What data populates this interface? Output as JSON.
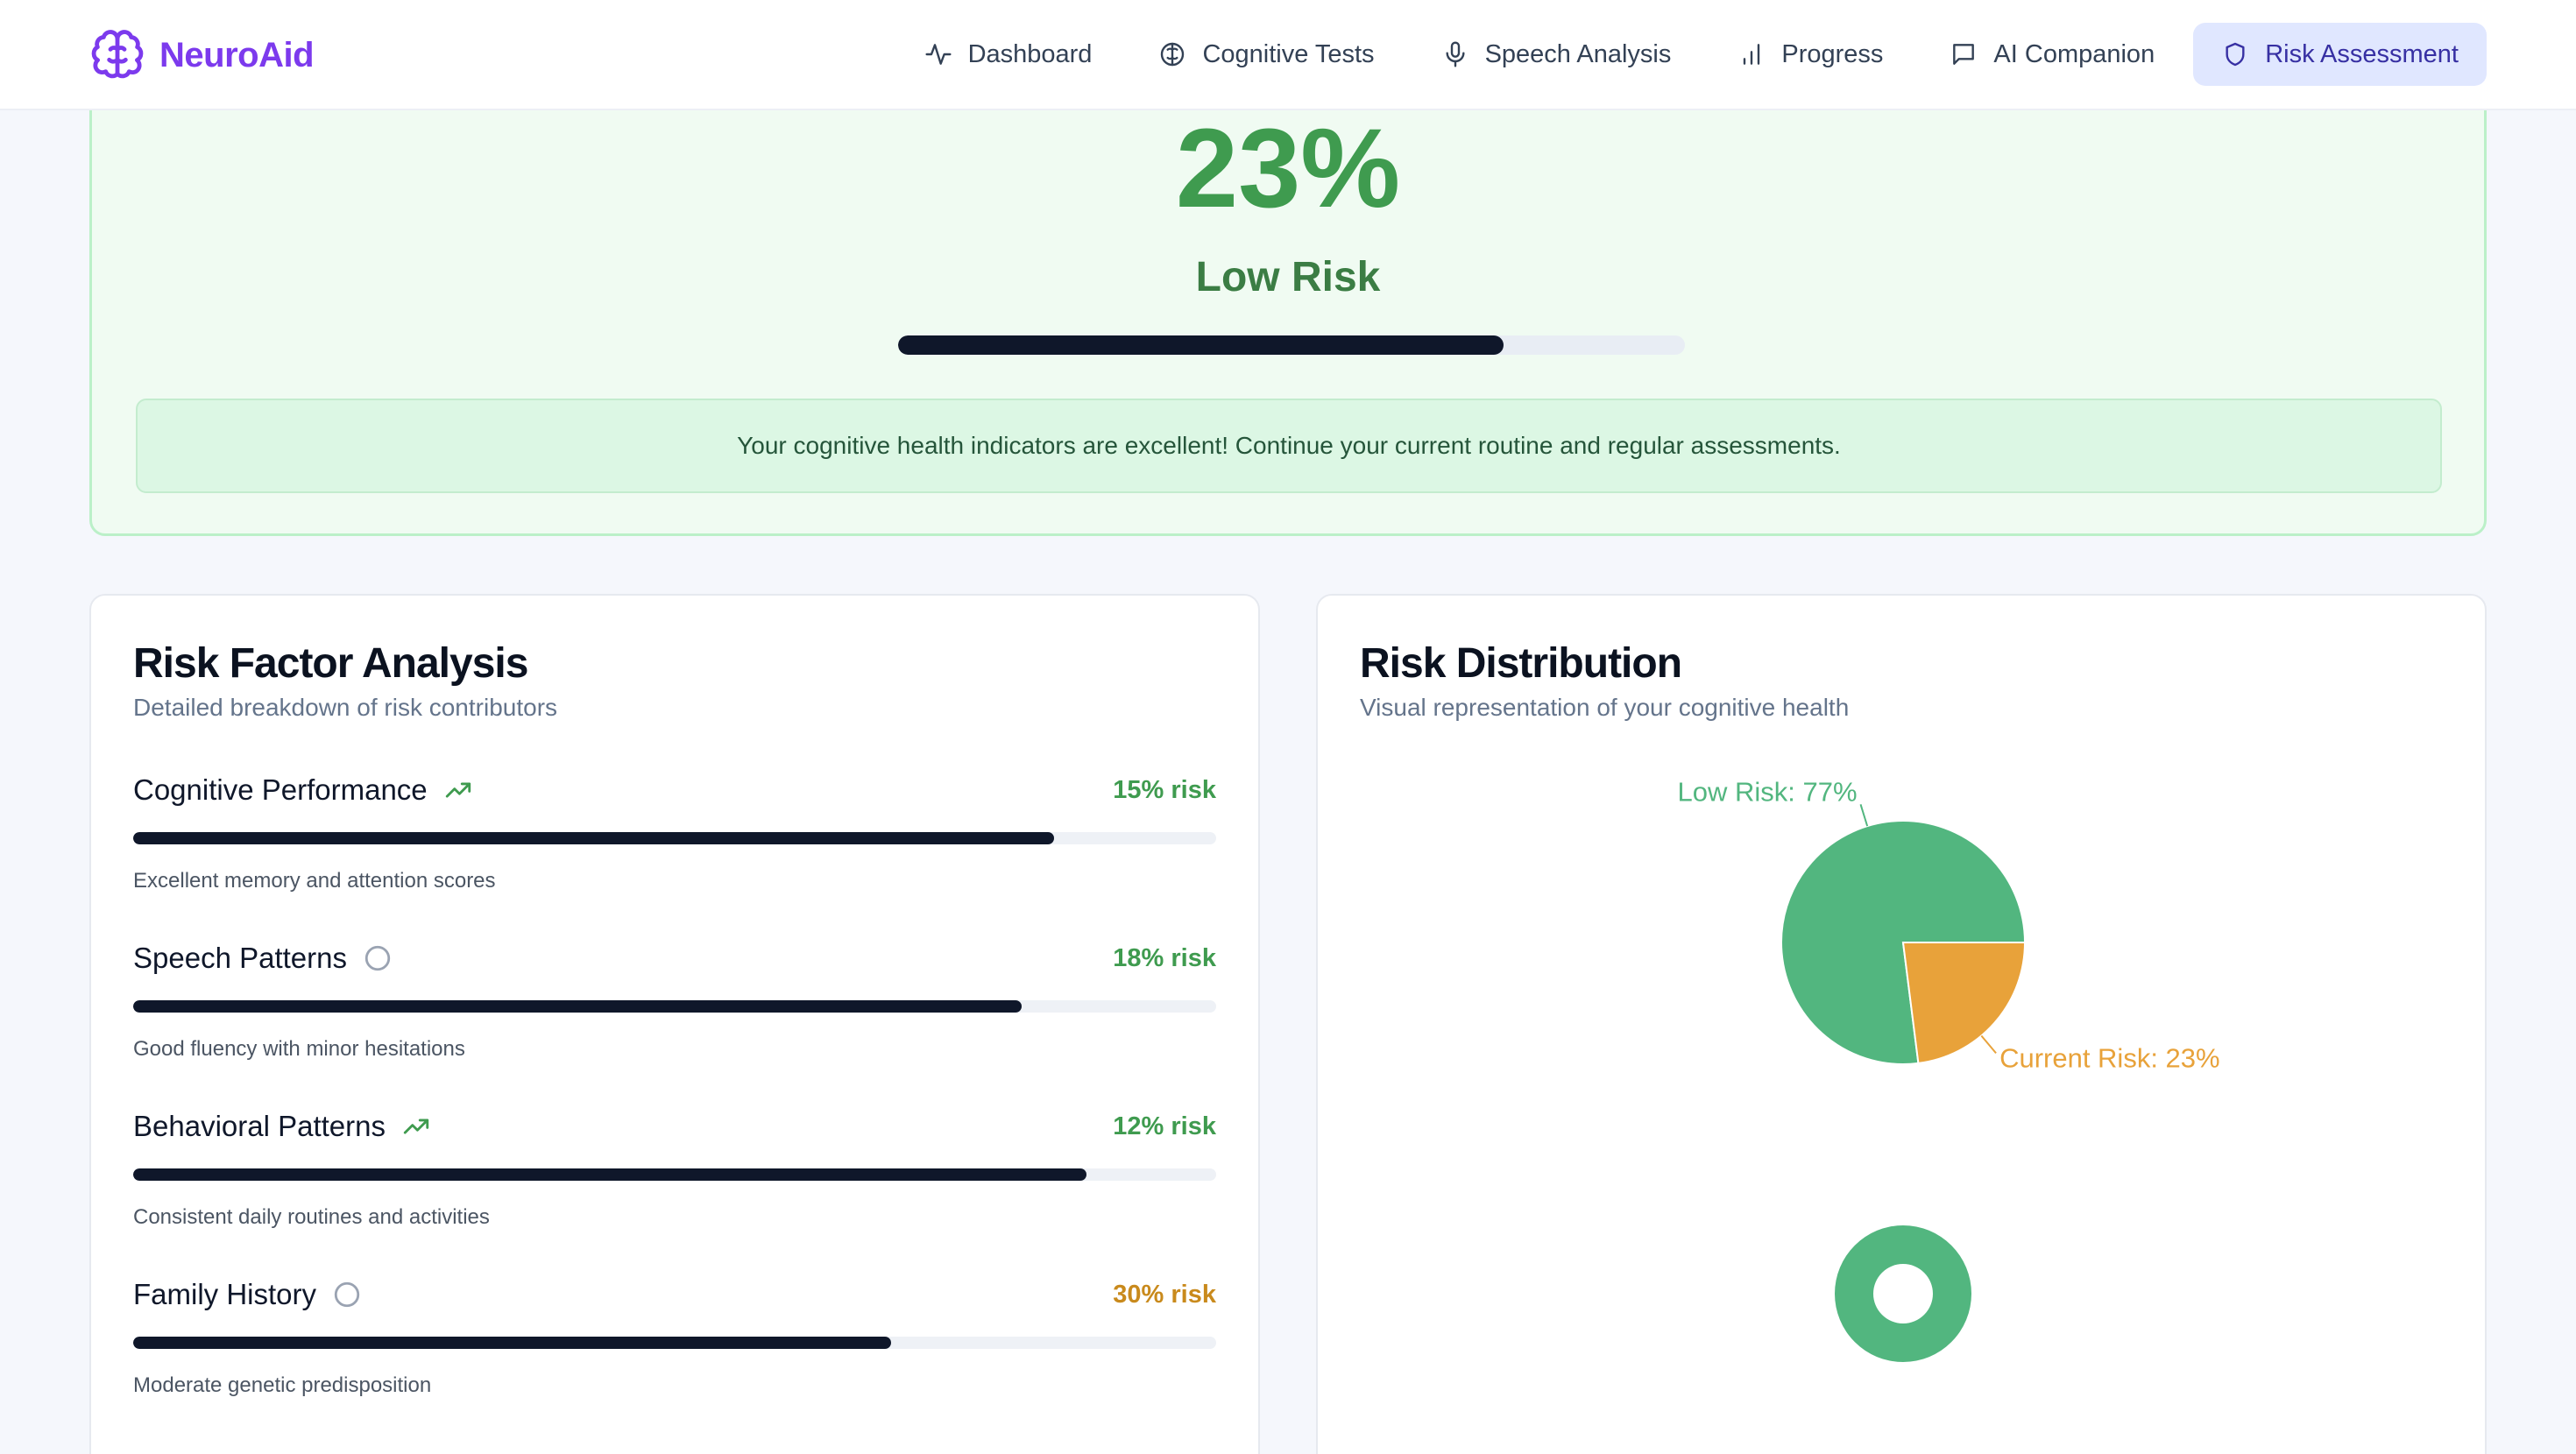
{
  "app": {
    "name": "NeuroAid",
    "logo_icon": "brain-icon"
  },
  "nav": [
    {
      "label": "Dashboard",
      "icon": "activity-icon",
      "active": false
    },
    {
      "label": "Cognitive Tests",
      "icon": "brain-icon",
      "active": false
    },
    {
      "label": "Speech Analysis",
      "icon": "microphone-icon",
      "active": false
    },
    {
      "label": "Progress",
      "icon": "bar-chart-icon",
      "active": false
    },
    {
      "label": "AI Companion",
      "icon": "message-icon",
      "active": false
    },
    {
      "label": "Risk Assessment",
      "icon": "shield-icon",
      "active": true
    }
  ],
  "summary": {
    "score": "23%",
    "level": "Low Risk",
    "progress_fraction": 0.77,
    "message": "Your cognitive health indicators are excellent! Continue your current routine and regular assessments."
  },
  "risk_factors": {
    "title": "Risk Factor Analysis",
    "subtitle": "Detailed breakdown of risk contributors",
    "items": [
      {
        "name": "Cognitive Performance",
        "risk_label": "15% risk",
        "risk": 15,
        "bar_fraction": 0.85,
        "description": "Excellent memory and attention scores",
        "icon": "trending-up-icon",
        "color": "#3f9b4f"
      },
      {
        "name": "Speech Patterns",
        "risk_label": "18% risk",
        "risk": 18,
        "bar_fraction": 0.82,
        "description": "Good fluency with minor hesitations",
        "icon": "circle-icon",
        "color": "#3f9b4f"
      },
      {
        "name": "Behavioral Patterns",
        "risk_label": "12% risk",
        "risk": 12,
        "bar_fraction": 0.88,
        "description": "Consistent daily routines and activities",
        "icon": "trending-up-icon",
        "color": "#3f9b4f"
      },
      {
        "name": "Family History",
        "risk_label": "30% risk",
        "risk": 30,
        "bar_fraction": 0.7,
        "description": "Moderate genetic predisposition",
        "icon": "circle-icon",
        "color": "#c98a1c"
      }
    ]
  },
  "distribution": {
    "title": "Risk Distribution",
    "subtitle": "Visual representation of your cognitive health"
  },
  "chart_data": [
    {
      "type": "pie",
      "slices": [
        {
          "label": "Low Risk: 77%",
          "value": 77,
          "color": "#52b67f"
        },
        {
          "label": "Current Risk: 23%",
          "value": 23,
          "color": "#e8a23a"
        }
      ]
    },
    {
      "type": "pie",
      "donut": true,
      "slices": [
        {
          "value": 100,
          "color": "#52b67f"
        }
      ]
    }
  ]
}
